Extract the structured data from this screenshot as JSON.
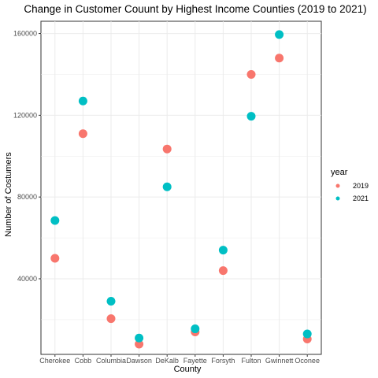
{
  "chart_data": {
    "type": "scatter",
    "title": "Change in Customer Couunt by Highest Income Counties (2019 to 2021)",
    "xlabel": "County",
    "ylabel": "Number of Costumers",
    "categories": [
      "Cherokee",
      "Cobb",
      "Columbia",
      "Dawson",
      "DeKalb",
      "Fayette",
      "Forsyth",
      "Fulton",
      "Gwinnett",
      "Oconee"
    ],
    "yticks": [
      40000,
      80000,
      120000,
      160000
    ],
    "ylim": [
      3000,
      166000
    ],
    "grid": true,
    "legend": {
      "title": "year",
      "position": "right"
    },
    "series": [
      {
        "name": "2019",
        "color": "#F8766D",
        "values": [
          50000,
          111000,
          20500,
          8000,
          103500,
          14000,
          44000,
          140000,
          148000,
          10500
        ]
      },
      {
        "name": "2021",
        "color": "#00BFC4",
        "values": [
          68500,
          127000,
          29000,
          11000,
          85000,
          15500,
          54000,
          119500,
          159500,
          13000
        ]
      }
    ]
  }
}
